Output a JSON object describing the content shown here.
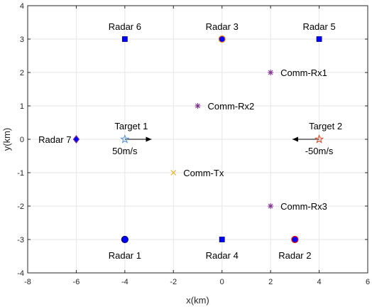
{
  "chart_data": {
    "type": "scatter",
    "xlabel": "x(km)",
    "ylabel": "y(km)",
    "xlim": [
      -8,
      6
    ],
    "ylim": [
      -4,
      4
    ],
    "xticks": [
      -8,
      -6,
      -4,
      -2,
      0,
      2,
      4,
      6
    ],
    "yticks": [
      -4,
      -3,
      -2,
      -1,
      0,
      1,
      2,
      3,
      4
    ],
    "grid": true,
    "points": [
      {
        "label": "Radar 1",
        "x": -4,
        "y": -3,
        "marker": "circle",
        "color": "#0000ff",
        "edge": "#000080"
      },
      {
        "label": "Radar 2",
        "x": 3,
        "y": -3,
        "marker": "circle",
        "color": "#0000ff",
        "edge": "#ff0000"
      },
      {
        "label": "Radar 3",
        "x": 0,
        "y": 3,
        "marker": "circle",
        "color": "#0000ff",
        "edge": "#ff8c00"
      },
      {
        "label": "Radar 4",
        "x": 0,
        "y": -3,
        "marker": "square",
        "color": "#0000ff",
        "edge": "#000080"
      },
      {
        "label": "Radar 5",
        "x": 4,
        "y": 3,
        "marker": "square",
        "color": "#0000ff",
        "edge": "#000080"
      },
      {
        "label": "Radar 6",
        "x": -4,
        "y": 3,
        "marker": "square",
        "color": "#0000ff",
        "edge": "#000080"
      },
      {
        "label": "Radar 7",
        "x": -6,
        "y": 0,
        "marker": "diamond",
        "color": "#0000ff",
        "edge": "#7e2f8e"
      },
      {
        "label": "Comm-Tx",
        "x": -2,
        "y": -1,
        "marker": "x",
        "color": "#edb120"
      },
      {
        "label": "Comm-Rx1",
        "x": 2,
        "y": 2,
        "marker": "asterisk",
        "color": "#7e2f8e"
      },
      {
        "label": "Comm-Rx2",
        "x": -1,
        "y": 1,
        "marker": "asterisk",
        "color": "#7e2f8e"
      },
      {
        "label": "Comm-Rx3",
        "x": 2,
        "y": -2,
        "marker": "asterisk",
        "color": "#7e2f8e"
      },
      {
        "label": "Target 1",
        "x": -4,
        "y": 0,
        "marker": "star",
        "color": "#4d90d0"
      },
      {
        "label": "Target 2",
        "x": 4,
        "y": 0,
        "marker": "star",
        "color": "#e0401a"
      }
    ],
    "arrows": [
      {
        "label": "50m/s",
        "from": [
          -4,
          0
        ],
        "to": [
          -2.9,
          0
        ]
      },
      {
        "label": "-50m/s",
        "from": [
          4,
          0
        ],
        "to": [
          2.9,
          0
        ]
      }
    ]
  }
}
